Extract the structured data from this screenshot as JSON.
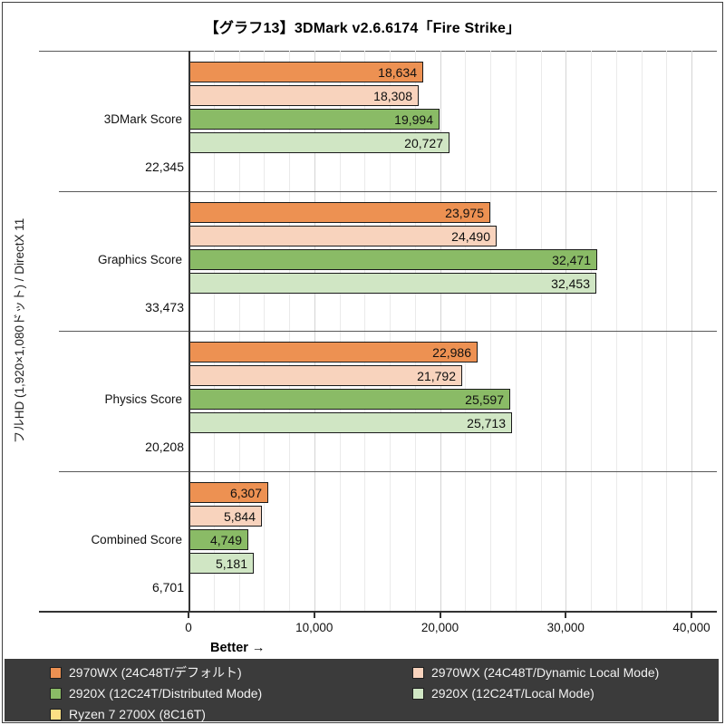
{
  "title": "【グラフ13】3DMark v2.6.6174「Fire Strike」",
  "y_axis_label": "フルHD (1,920×1,080ドット) / DirectX 11",
  "better_label": "Better →",
  "chart_data": {
    "type": "bar",
    "orientation": "horizontal",
    "title": "【グラフ13】3DMark v2.6.6174「Fire Strike」",
    "categories": [
      "3DMark Score",
      "Graphics Score",
      "Physics Score",
      "Combined Score"
    ],
    "series": [
      {
        "name": "2970WX (24C48T/デフォルト)",
        "color": "#ED9152",
        "values": [
          18634,
          23975,
          22986,
          6307
        ]
      },
      {
        "name": "2970WX (24C48T/Dynamic Local Mode)",
        "color": "#F8D3BD",
        "values": [
          18308,
          24490,
          21792,
          5844
        ]
      },
      {
        "name": "2920X (12C24T/Distributed Mode)",
        "color": "#8ABB66",
        "values": [
          19994,
          32471,
          25597,
          4749
        ]
      },
      {
        "name": "2920X (12C24T/Local Mode)",
        "color": "#D0E6C4",
        "values": [
          20727,
          32453,
          25713,
          5181
        ]
      },
      {
        "name": "Ryzen 7 2700X (8C16T)",
        "color": "#FDE084",
        "values": [
          22345,
          33473,
          20208,
          6701
        ]
      }
    ],
    "value_labels": [
      "18,634",
      "18,308",
      "19,994",
      "20,727",
      "22,345",
      "23,975",
      "24,490",
      "32,471",
      "32,453",
      "33,473",
      "22,986",
      "21,792",
      "25,597",
      "25,713",
      "20,208",
      "6,307",
      "5,844",
      "4,749",
      "5,181",
      "6,701"
    ],
    "xlabel": "Better →",
    "ylabel": "フルHD (1,920×1,080ドット) / DirectX 11",
    "xlim": [
      0,
      40000
    ],
    "x_ticks": [
      0,
      10000,
      20000,
      30000,
      40000
    ],
    "x_tick_labels": [
      "0",
      "10,000",
      "20,000",
      "30,000",
      "40,000"
    ],
    "minor_grid_step": 2000,
    "major_grid_step": 10000,
    "grid": true,
    "legend_position": "bottom"
  },
  "colors": {
    "legend_bg": "#3B3B3B",
    "legend_text": "#F2F2F2",
    "bar_border": "#1A1A1A",
    "axis": "#333333",
    "separator": "#595959",
    "grid_minor": "#EAEAEA",
    "grid_major": "#D4D4D4"
  }
}
